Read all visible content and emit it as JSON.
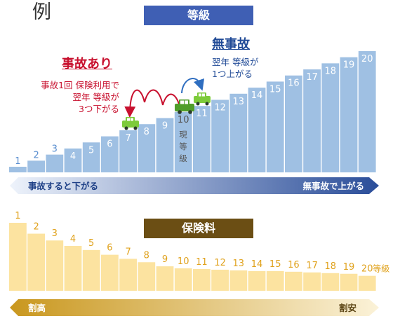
{
  "example_label": "例",
  "grade_header": "等級",
  "premium_header": "保険料",
  "accident": {
    "title": "事故あり",
    "note_lines": [
      "事故1回 保険利用で",
      "翌年 等級が",
      "3つ下がる"
    ]
  },
  "no_accident": {
    "title": "無事故",
    "note_lines": [
      "翌年 等級が",
      "1つ上がる"
    ]
  },
  "current_label": "現\n等\n級",
  "grade_arrow": {
    "left": "事故すると下がる",
    "right": "無事故で上がる"
  },
  "premium_arrow": {
    "left": "割高",
    "right": "割安"
  },
  "grade_unit": "等級",
  "colors": {
    "grade_bar": "#9fc0e3",
    "grade_number_low": "#5b8fd0",
    "premium_bar": "#fce3a0",
    "premium_number": "#e0a21d",
    "accident_red": "#c8102e",
    "no_accident_blue": "#214b97",
    "car_green": "#7dcb3a"
  },
  "chart_data": [
    {
      "type": "bar",
      "title": "等級",
      "categories": [
        "1",
        "2",
        "3",
        "4",
        "5",
        "6",
        "7",
        "8",
        "9",
        "10",
        "11",
        "12",
        "13",
        "14",
        "15",
        "16",
        "17",
        "18",
        "19",
        "20"
      ],
      "values": [
        1,
        2,
        3,
        4,
        5,
        6,
        7,
        8,
        9,
        10,
        11,
        12,
        13,
        14,
        15,
        16,
        17,
        18,
        19,
        20
      ]
    },
    {
      "type": "bar",
      "title": "保険料",
      "categories": [
        "1",
        "2",
        "3",
        "4",
        "5",
        "6",
        "7",
        "8",
        "9",
        "10",
        "11",
        "12",
        "13",
        "14",
        "15",
        "16",
        "17",
        "18",
        "19",
        "20"
      ],
      "values": [
        100,
        84,
        74,
        66,
        60,
        53,
        47,
        42,
        36,
        33,
        32,
        31,
        30,
        29,
        29,
        28,
        27,
        26,
        25,
        22
      ]
    }
  ]
}
